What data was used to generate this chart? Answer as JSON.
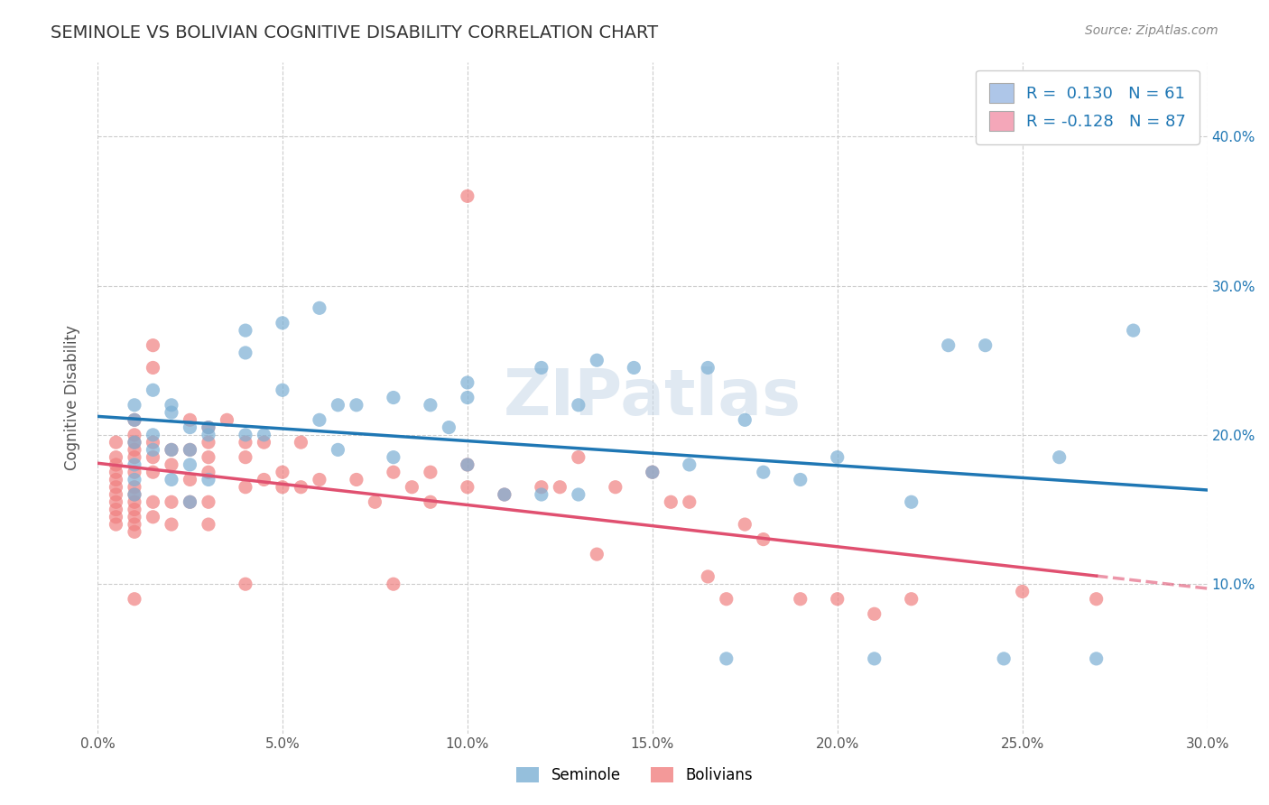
{
  "title": "SEMINOLE VS BOLIVIAN COGNITIVE DISABILITY CORRELATION CHART",
  "source": "Source: ZipAtlas.com",
  "xlabel_bottom": "",
  "ylabel": "Cognitive Disability",
  "xlim": [
    0.0,
    0.3
  ],
  "ylim": [
    0.0,
    0.45
  ],
  "xticks": [
    0.0,
    0.05,
    0.1,
    0.15,
    0.2,
    0.25,
    0.3
  ],
  "yticks": [
    0.1,
    0.2,
    0.3,
    0.4
  ],
  "xticklabels": [
    "0.0%",
    "5.0%",
    "10.0%",
    "15.0%",
    "20.0%",
    "25.0%",
    "30.0%"
  ],
  "yticklabels_right": [
    "10.0%",
    "20.0%",
    "30.0%",
    "40.0%"
  ],
  "legend_items": [
    {
      "label": "R =  0.130   N = 61",
      "color": "#aec6e8"
    },
    {
      "label": "R = -0.128   N = 87",
      "color": "#f4a7b9"
    }
  ],
  "seminole_color": "#7bafd4",
  "bolivians_color": "#f08080",
  "seminole_line_color": "#1f77b4",
  "bolivians_line_color": "#e05070",
  "seminole_R": 0.13,
  "seminole_N": 61,
  "bolivians_R": -0.128,
  "bolivians_N": 87,
  "background_color": "#ffffff",
  "grid_color": "#cccccc",
  "seminole_scatter_x": [
    0.01,
    0.01,
    0.01,
    0.01,
    0.01,
    0.01,
    0.015,
    0.015,
    0.015,
    0.02,
    0.02,
    0.02,
    0.02,
    0.025,
    0.025,
    0.025,
    0.025,
    0.03,
    0.03,
    0.03,
    0.04,
    0.04,
    0.04,
    0.045,
    0.05,
    0.05,
    0.06,
    0.06,
    0.065,
    0.065,
    0.07,
    0.08,
    0.08,
    0.09,
    0.095,
    0.1,
    0.1,
    0.1,
    0.11,
    0.12,
    0.12,
    0.13,
    0.13,
    0.135,
    0.145,
    0.15,
    0.16,
    0.165,
    0.17,
    0.175,
    0.18,
    0.19,
    0.2,
    0.21,
    0.22,
    0.23,
    0.24,
    0.245,
    0.26,
    0.27,
    0.28
  ],
  "seminole_scatter_y": [
    0.195,
    0.21,
    0.22,
    0.18,
    0.17,
    0.16,
    0.23,
    0.2,
    0.19,
    0.22,
    0.215,
    0.19,
    0.17,
    0.205,
    0.19,
    0.18,
    0.155,
    0.205,
    0.2,
    0.17,
    0.27,
    0.255,
    0.2,
    0.2,
    0.275,
    0.23,
    0.285,
    0.21,
    0.22,
    0.19,
    0.22,
    0.225,
    0.185,
    0.22,
    0.205,
    0.235,
    0.225,
    0.18,
    0.16,
    0.16,
    0.245,
    0.16,
    0.22,
    0.25,
    0.245,
    0.175,
    0.18,
    0.245,
    0.05,
    0.21,
    0.175,
    0.17,
    0.185,
    0.05,
    0.155,
    0.26,
    0.26,
    0.05,
    0.185,
    0.05,
    0.27
  ],
  "bolivians_scatter_x": [
    0.005,
    0.005,
    0.005,
    0.005,
    0.005,
    0.005,
    0.005,
    0.005,
    0.005,
    0.005,
    0.005,
    0.01,
    0.01,
    0.01,
    0.01,
    0.01,
    0.01,
    0.01,
    0.01,
    0.01,
    0.01,
    0.01,
    0.01,
    0.01,
    0.01,
    0.015,
    0.015,
    0.015,
    0.015,
    0.015,
    0.015,
    0.015,
    0.02,
    0.02,
    0.02,
    0.02,
    0.025,
    0.025,
    0.025,
    0.025,
    0.03,
    0.03,
    0.03,
    0.03,
    0.03,
    0.03,
    0.035,
    0.04,
    0.04,
    0.04,
    0.04,
    0.045,
    0.045,
    0.05,
    0.05,
    0.055,
    0.055,
    0.06,
    0.07,
    0.075,
    0.08,
    0.08,
    0.085,
    0.09,
    0.09,
    0.1,
    0.1,
    0.1,
    0.11,
    0.12,
    0.125,
    0.13,
    0.135,
    0.14,
    0.15,
    0.155,
    0.16,
    0.165,
    0.17,
    0.175,
    0.18,
    0.19,
    0.2,
    0.21,
    0.22,
    0.25,
    0.27
  ],
  "bolivians_scatter_y": [
    0.195,
    0.185,
    0.18,
    0.175,
    0.17,
    0.165,
    0.16,
    0.155,
    0.15,
    0.145,
    0.14,
    0.21,
    0.2,
    0.195,
    0.19,
    0.185,
    0.175,
    0.165,
    0.16,
    0.155,
    0.15,
    0.145,
    0.14,
    0.135,
    0.09,
    0.26,
    0.245,
    0.195,
    0.185,
    0.175,
    0.155,
    0.145,
    0.19,
    0.18,
    0.155,
    0.14,
    0.21,
    0.19,
    0.17,
    0.155,
    0.205,
    0.195,
    0.185,
    0.175,
    0.155,
    0.14,
    0.21,
    0.195,
    0.185,
    0.165,
    0.1,
    0.195,
    0.17,
    0.175,
    0.165,
    0.195,
    0.165,
    0.17,
    0.17,
    0.155,
    0.175,
    0.1,
    0.165,
    0.175,
    0.155,
    0.18,
    0.165,
    0.36,
    0.16,
    0.165,
    0.165,
    0.185,
    0.12,
    0.165,
    0.175,
    0.155,
    0.155,
    0.105,
    0.09,
    0.14,
    0.13,
    0.09,
    0.09,
    0.08,
    0.09,
    0.095,
    0.09
  ]
}
